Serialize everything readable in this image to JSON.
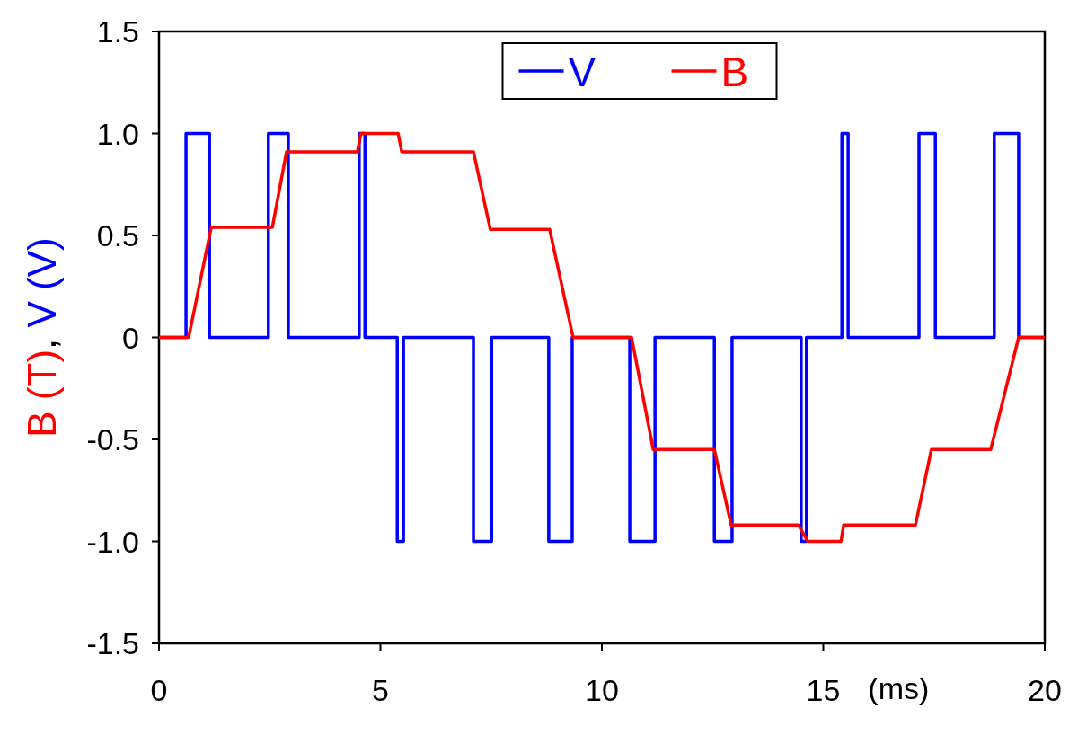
{
  "chart_data": {
    "type": "line",
    "ylabel": "B (T), V (V)",
    "xlabel": "(ms)",
    "xlim": [
      0,
      20
    ],
    "xticks": [
      0,
      5,
      10,
      15,
      20
    ],
    "ylim": [
      -1.5,
      1.5
    ],
    "yticks": [
      {
        "value": -1.5,
        "label": "-1.5"
      },
      {
        "value": -1,
        "label": "-1.0"
      },
      -0.5,
      0,
      0.5,
      {
        "value": 1,
        "label": "1.0"
      },
      1.5
    ],
    "grid": false,
    "legend": "top",
    "line_style": "solid",
    "marker": "none",
    "series": [
      {
        "name": "V",
        "type": "step",
        "color": "#0000ff",
        "x": [
          0,
          0.61,
          1.14,
          2.47,
          2.92,
          4.52,
          4.65,
          5.38,
          5.52,
          7.1,
          7.51,
          8.8,
          9.33,
          10.63,
          11.2,
          12.54,
          12.94,
          14.5,
          14.62,
          15.42,
          15.56,
          17.16,
          17.53,
          18.86,
          19.41,
          20
        ],
        "values": [
          0,
          1,
          0,
          1,
          0,
          1,
          0,
          -1,
          0,
          -1,
          0,
          -1,
          0,
          -1,
          0,
          -1,
          0,
          -1,
          0,
          1,
          0,
          1,
          0,
          1,
          0,
          0
        ]
      },
      {
        "name": "B",
        "color": "#ff0000",
        "x": [
          0,
          0.67,
          1.18,
          2.56,
          2.88,
          4.48,
          4.56,
          5.4,
          5.48,
          7.1,
          7.48,
          8.82,
          9.35,
          10.67,
          11.16,
          12.54,
          12.92,
          14.44,
          14.65,
          15.4,
          15.46,
          17.08,
          17.44,
          18.78,
          19.41,
          20
        ],
        "values": [
          0,
          0,
          0.54,
          0.54,
          0.91,
          0.91,
          1.0,
          1.0,
          0.91,
          0.91,
          0.53,
          0.53,
          0,
          0,
          -0.55,
          -0.55,
          -0.92,
          -0.92,
          -1.0,
          -1.0,
          -0.92,
          -0.92,
          -0.55,
          -0.55,
          0,
          0
        ]
      }
    ]
  }
}
